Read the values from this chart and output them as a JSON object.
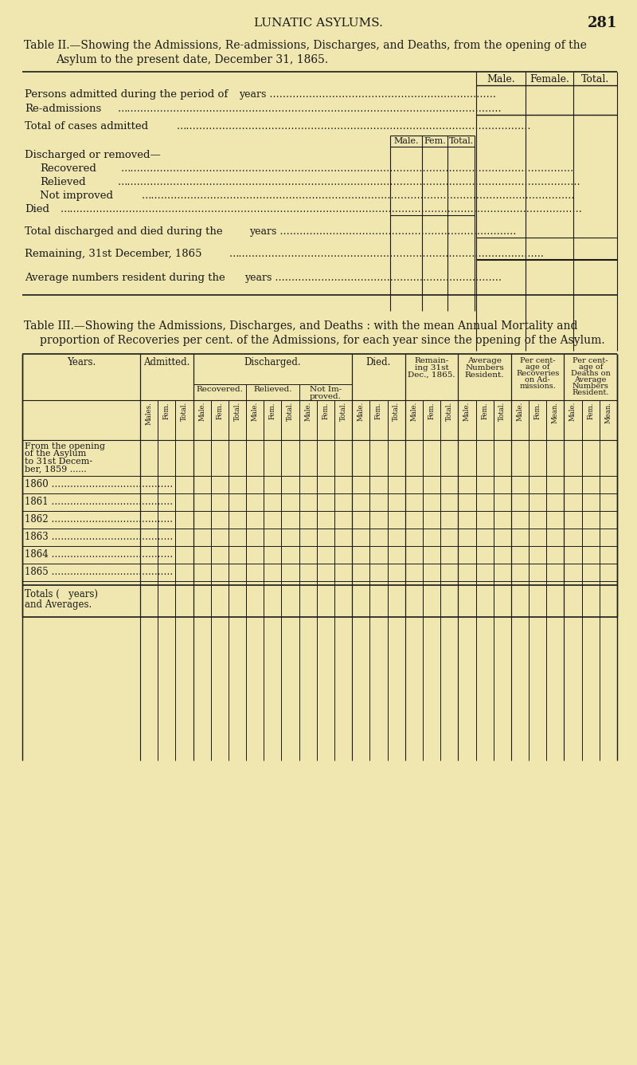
{
  "bg_color": "#f0e6b0",
  "text_color": "#1a1a1a",
  "page_number": "281",
  "header": "LUNATIC ASYLUMS.",
  "t2_title1": "Table II.—Showing the Admissions, Re-admissions, Discharges, and Deaths, from the opening of the",
  "t2_title2": "Asylum to the present date, December 31, 1865.",
  "t3_title1": "Table III.—Showing the Admissions, Discharges, and Deaths : with the mean Annual Mortality and",
  "t3_title2": "proportion of Recoveries per cent. of the Admissions, for each year since the opening of the Asylum."
}
